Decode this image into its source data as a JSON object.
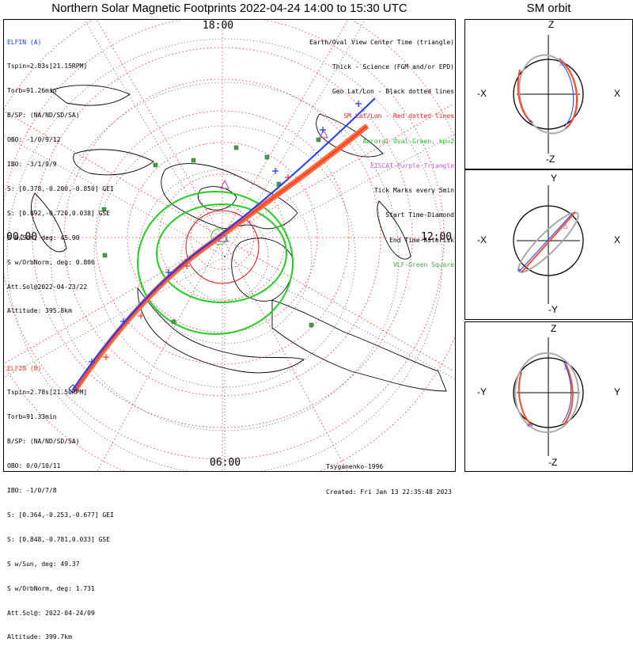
{
  "title": "Northern Solar Magnetic Footprints 2022-04-24 14:00 to 15:30 UTC",
  "orbit_title": "SM orbit",
  "elfin_a": {
    "name": "ELFIN (A)",
    "lines": [
      "Tspin=2.83s[21.15RPM]",
      "Torb=91.26min",
      "B/SP: (NA/ND/SD/SA)",
      "OBO: -1/0/9/12",
      "IBO: -3/1/9/9",
      "S: [0.378,-0.200,-0.850] GEI",
      "S: [0.892,-0.720,0.038] GSE",
      "S w/Sun, deg: 45.90",
      "S w/OrbNorm, deg: 0.806",
      "Att.Sol@2022-04-23/22",
      "Altitude: 395.8km"
    ],
    "color": "#1a3cff"
  },
  "elfin_b": {
    "name": "ELFIN (B)",
    "lines": [
      "Tspin=2.78s[21.50RPM]",
      "Torb=91.33min",
      "B/SP: (NA/ND/SD/SA)",
      "OBO: 0/0/10/11",
      "IBO: -1/0/7/8",
      "S: [0.364,-0.253,-0.677] GEI",
      "S: [0.848,-0.781,0.033] GSE",
      "S w/Sun, deg: 49.37",
      "S w/OrbNorm, deg: 1.731",
      "Att.Sol@: 2022-04-24/09",
      "Altitude: 399.7km"
    ],
    "color": "#ff3a1a"
  },
  "legend": [
    {
      "text": "Earth/Oval View Center Time (triangle)",
      "color": "#000000"
    },
    {
      "text": "Thick - Science (FGM and/or EPD)",
      "color": "#000000"
    },
    {
      "text": "Geo Lat/Lon - Black dotted lines",
      "color": "#000000"
    },
    {
      "text": "SM Lat/Lon - Red dotted lines",
      "color": "#ff1a1a"
    },
    {
      "text": "Auroral Oval-Green, kp=2",
      "color": "#19c419"
    },
    {
      "text": "EISCAT-Purple Triangle",
      "color": "#c25ac2"
    },
    {
      "text": "Tick Marks every 5min",
      "color": "#000000"
    },
    {
      "text": "Start Time-Diamond",
      "color": "#000000"
    },
    {
      "text": "End Time-Asterisk",
      "color": "#000000"
    },
    {
      "text": "VLF-Green Square",
      "color": "#44a544"
    }
  ],
  "clock_labels": {
    "top": "18:00",
    "left": "00:00",
    "right": "12:00",
    "bottom": "06:00"
  },
  "credit": {
    "author": "Tsyganenko-1996",
    "created": "Created: Fri Jan 13 22:35:48 2023"
  },
  "orbit_panels": [
    {
      "top": "Z",
      "bottom": "-Z",
      "left": "-X",
      "right": "X"
    },
    {
      "top": "Y",
      "bottom": "-Y",
      "left": "-X",
      "right": "X"
    },
    {
      "top": "Z",
      "bottom": "-Z",
      "left": "-Y",
      "right": "Y"
    }
  ]
}
